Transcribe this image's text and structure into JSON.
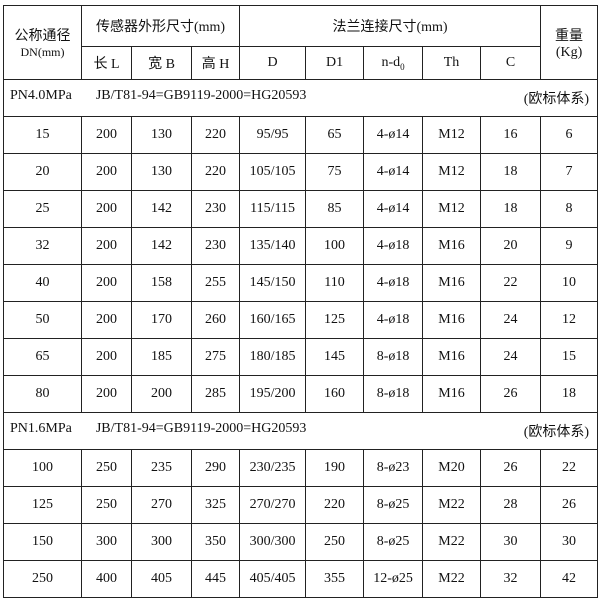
{
  "header": {
    "dn_label": "公称通径",
    "dn_unit": "DN(mm)",
    "sensor_group": "传感器外形尺寸(mm)",
    "flange_group": "法兰连接尺寸(mm)",
    "weight_label": "重量",
    "weight_unit": "(Kg)",
    "columns": [
      "长 L",
      "宽 B",
      "高 H",
      "D",
      "D1",
      "n-d",
      "Th",
      "C"
    ],
    "nd_sub": "0"
  },
  "sections": [
    {
      "pressure": "PN4.0MPa",
      "standard": "JB/T81-94=GB9119-2000=HG20593",
      "system": "(欧标体系)",
      "rows": [
        [
          "15",
          "200",
          "130",
          "220",
          "95/95",
          "65",
          "4-ø14",
          "M12",
          "16",
          "6"
        ],
        [
          "20",
          "200",
          "130",
          "220",
          "105/105",
          "75",
          "4-ø14",
          "M12",
          "18",
          "7"
        ],
        [
          "25",
          "200",
          "142",
          "230",
          "115/115",
          "85",
          "4-ø14",
          "M12",
          "18",
          "8"
        ],
        [
          "32",
          "200",
          "142",
          "230",
          "135/140",
          "100",
          "4-ø18",
          "M16",
          "20",
          "9"
        ],
        [
          "40",
          "200",
          "158",
          "255",
          "145/150",
          "110",
          "4-ø18",
          "M16",
          "22",
          "10"
        ],
        [
          "50",
          "200",
          "170",
          "260",
          "160/165",
          "125",
          "4-ø18",
          "M16",
          "24",
          "12"
        ],
        [
          "65",
          "200",
          "185",
          "275",
          "180/185",
          "145",
          "8-ø18",
          "M16",
          "24",
          "15"
        ],
        [
          "80",
          "200",
          "200",
          "285",
          "195/200",
          "160",
          "8-ø18",
          "M16",
          "26",
          "18"
        ]
      ]
    },
    {
      "pressure": "PN1.6MPa",
      "standard": "JB/T81-94=GB9119-2000=HG20593",
      "system": "(欧标体系)",
      "rows": [
        [
          "100",
          "250",
          "235",
          "290",
          "230/235",
          "190",
          "8-ø23",
          "M20",
          "26",
          "22"
        ],
        [
          "125",
          "250",
          "270",
          "325",
          "270/270",
          "220",
          "8-ø25",
          "M22",
          "28",
          "26"
        ],
        [
          "150",
          "300",
          "300",
          "350",
          "300/300",
          "250",
          "8-ø25",
          "M22",
          "30",
          "30"
        ],
        [
          "250",
          "400",
          "405",
          "445",
          "405/405",
          "355",
          "12-ø25",
          "M22",
          "32",
          "42"
        ]
      ]
    }
  ]
}
